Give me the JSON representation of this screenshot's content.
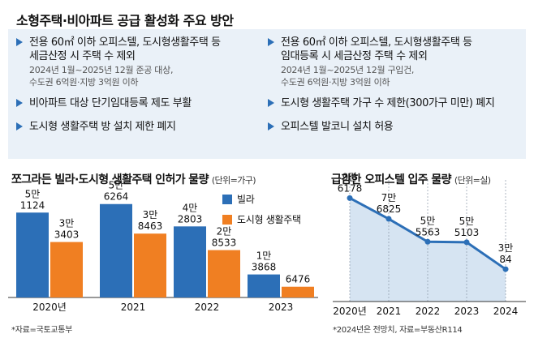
{
  "title": "소형주택·비아파트 공급 활성화 주요 방안",
  "measures": {
    "left": [
      {
        "title": "전용 60㎡ 이하 오피스텔, 도시형생활주택 등\n세금산정 시 주택 수 제외",
        "sub": "2024년 1월~2025년 12월 준공 대상,\n수도권 6억원·지방 3억원 이하"
      },
      {
        "title": "비아파트 대상 단기임대등록 제도 부활",
        "sub": ""
      },
      {
        "title": "도시형 생활주택 방 설치 제한 폐지",
        "sub": ""
      }
    ],
    "right": [
      {
        "title": "전용 60㎡ 이하 오피스텔, 도시형생활주택 등\n임대등록 시 세금산정 주택 수 제외",
        "sub": "2024년 1월~2025년 12월 구입건,\n수도권 6억원·지방 3억원 이하"
      },
      {
        "title": "도시형 생활주택 가구 수 제한(300가구 미만) 폐지",
        "sub": ""
      },
      {
        "title": "오피스텔 발코니 설치 허용",
        "sub": ""
      }
    ]
  },
  "bar_section": {
    "title": "쪼그라든 빌라·도시형 생활주택 인허가 물량",
    "unit": "(단위=가구)",
    "source": "*자료=국토교통부"
  },
  "line_section": {
    "title": "급감한 오피스텔 입주 물량",
    "unit": "(단위=실)",
    "note": "*2024년은 전망치, 자료=부동산R114"
  },
  "chart_data": [
    {
      "type": "bar",
      "categories": [
        "2020년",
        "2021",
        "2022",
        "2023"
      ],
      "series": [
        {
          "name": "빌라",
          "color": "#2c6fb7",
          "values": [
            51124,
            56264,
            42803,
            13868
          ],
          "labels": [
            [
              "5만",
              "1124"
            ],
            [
              "5만",
              "6264"
            ],
            [
              "4만",
              "2803"
            ],
            [
              "1만",
              "3868"
            ]
          ]
        },
        {
          "name": "도시형 생활주택",
          "color": "#f07f22",
          "values": [
            33403,
            38463,
            28533,
            6476
          ],
          "labels": [
            [
              "3만",
              "3403"
            ],
            [
              "3만",
              "8463"
            ],
            [
              "2만",
              "8533"
            ],
            [
              "6476"
            ]
          ]
        }
      ],
      "ylim": [
        0,
        62000
      ]
    },
    {
      "type": "area",
      "x": [
        "2020년",
        "2021",
        "2022",
        "2023",
        "2024"
      ],
      "values": [
        96178,
        76825,
        55563,
        55103,
        30084
      ],
      "labels": [
        [
          "9만",
          "6178"
        ],
        [
          "7만",
          "6825"
        ],
        [
          "5만",
          "5563"
        ],
        [
          "5만",
          "5103"
        ],
        [
          "3만",
          "84"
        ]
      ],
      "line_color": "#2c6fb7",
      "fill_color": "#d6e4f2",
      "ylim": [
        0,
        110000
      ]
    }
  ]
}
